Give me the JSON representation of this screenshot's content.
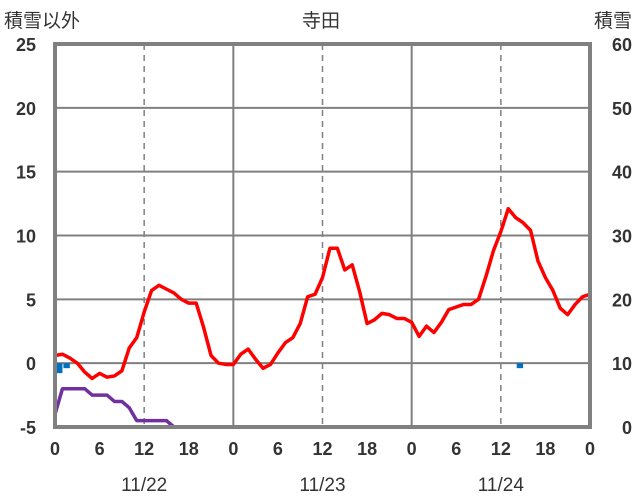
{
  "chart_data": {
    "type": "line",
    "title": "寺田",
    "left_axis_label": "積雪以外",
    "right_axis_label": "積雪",
    "x_range_hours": [
      0,
      72
    ],
    "x_ticks": [
      {
        "hour": 0,
        "label": "0"
      },
      {
        "hour": 6,
        "label": "6"
      },
      {
        "hour": 12,
        "label": "12"
      },
      {
        "hour": 18,
        "label": "18"
      },
      {
        "hour": 24,
        "label": "0"
      },
      {
        "hour": 30,
        "label": "6"
      },
      {
        "hour": 36,
        "label": "12"
      },
      {
        "hour": 42,
        "label": "18"
      },
      {
        "hour": 48,
        "label": "0"
      },
      {
        "hour": 54,
        "label": "6"
      },
      {
        "hour": 60,
        "label": "12"
      },
      {
        "hour": 66,
        "label": "18"
      },
      {
        "hour": 72,
        "label": "0"
      }
    ],
    "date_labels": [
      {
        "hour": 12,
        "label": "11/22"
      },
      {
        "hour": 36,
        "label": "11/23"
      },
      {
        "hour": 60,
        "label": "11/24"
      }
    ],
    "left_axis": {
      "min": -5,
      "max": 25,
      "ticks": [
        "-5",
        "0",
        "5",
        "10",
        "15",
        "20",
        "25"
      ]
    },
    "right_axis": {
      "min": 0,
      "max": 60,
      "ticks": [
        "0",
        "10",
        "20",
        "30",
        "40",
        "50",
        "60"
      ]
    },
    "grid": true,
    "colors": {
      "temperature": "#ff0000",
      "snow_depth": "#7030a0",
      "precipitation": "#0070c0",
      "grid": "#808080",
      "frame": "#808080"
    },
    "temperature": [
      0.6,
      0.7,
      0.4,
      0,
      -0.7,
      -1.2,
      -0.8,
      -1.1,
      -1.0,
      -0.6,
      1.2,
      2.0,
      4.0,
      5.7,
      6.1,
      5.8,
      5.5,
      5.0,
      4.7,
      4.7,
      2.8,
      0.6,
      0.0,
      -0.1,
      -0.1,
      0.7,
      1.1,
      0.3,
      -0.4,
      -0.1,
      0.8,
      1.6,
      2.0,
      3.1,
      5.2,
      5.4,
      6.7,
      9.0,
      9.0,
      7.3,
      7.7,
      5.6,
      3.1,
      3.4,
      3.9,
      3.8,
      3.5,
      3.5,
      3.2,
      2.1,
      2.9,
      2.4,
      3.2,
      4.2,
      4.4,
      4.6,
      4.6,
      5.0,
      6.8,
      8.8,
      10.3,
      12.1,
      11.4,
      11.0,
      10.4,
      8.0,
      6.7,
      5.7,
      4.3,
      3.8,
      4.6,
      5.2,
      5.4
    ],
    "snow_depth": [
      [
        0,
        2
      ],
      [
        1,
        6
      ],
      [
        2,
        6
      ],
      [
        4,
        6
      ],
      [
        5,
        5
      ],
      [
        7,
        5
      ],
      [
        8,
        4
      ],
      [
        9,
        4
      ],
      [
        10,
        3
      ],
      [
        11,
        1
      ],
      [
        15,
        1
      ],
      [
        16,
        0
      ],
      [
        72,
        0
      ]
    ],
    "precipitation": [
      {
        "hour": 0,
        "value": 2.0
      },
      {
        "hour": 1,
        "value": 1.0
      },
      {
        "hour": 62,
        "value": 1.0
      }
    ]
  }
}
